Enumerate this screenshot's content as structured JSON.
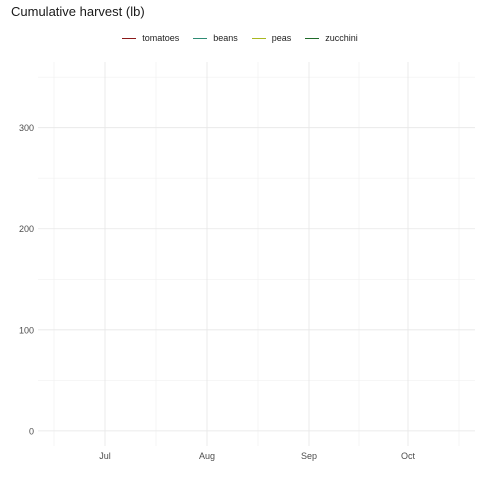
{
  "chart_data": {
    "type": "line",
    "title": "Cumulative harvest (lb)",
    "xlabel": "",
    "ylabel": "",
    "x_ticks": [
      "Jul",
      "Aug",
      "Sep",
      "Oct"
    ],
    "y_ticks": [
      0,
      100,
      200,
      300
    ],
    "ylim": [
      -15,
      365
    ],
    "grid": true,
    "legend_position": "top",
    "series": [
      {
        "name": "tomatoes",
        "color": "#8b1a1a",
        "values": []
      },
      {
        "name": "beans",
        "color": "#2e8b74",
        "values": []
      },
      {
        "name": "peas",
        "color": "#a8b820",
        "values": []
      },
      {
        "name": "zucchini",
        "color": "#1f6b2a",
        "values": []
      }
    ]
  }
}
